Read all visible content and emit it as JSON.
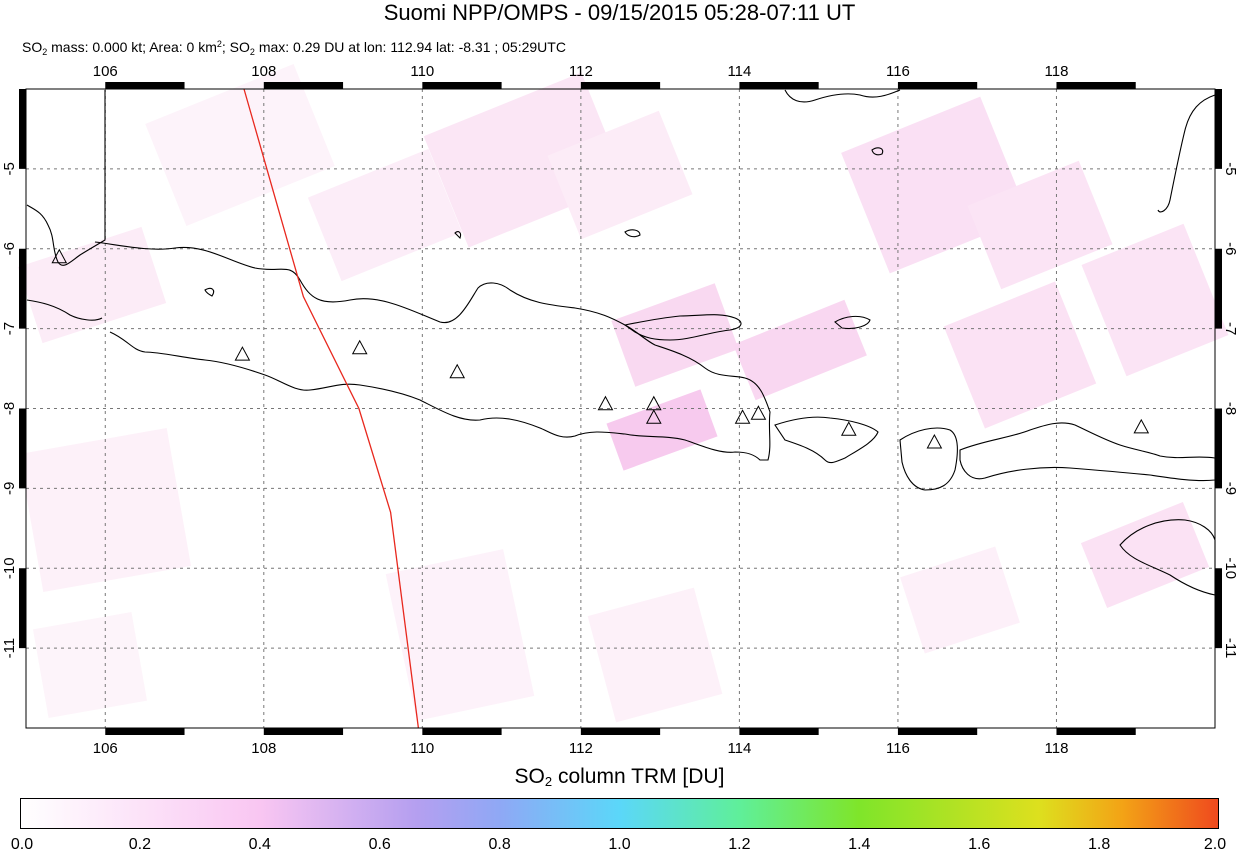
{
  "title": "Suomi NPP/OMPS - 09/15/2015 05:28-07:11 UT",
  "subtitle": {
    "so2_mass_label": "SO",
    "mass_rest": " mass: 0.000 kt; Area: 0 km",
    "area_exp": "2",
    "so2_max_label": "; SO",
    "max_rest": " max: 0.29 DU at lon: 112.94 lat: -8.31 ; 05:29UTC",
    "sub2": "2"
  },
  "map": {
    "lon_range": [
      105,
      120
    ],
    "lat_range": [
      -12,
      -4
    ],
    "lon_ticks": [
      "106",
      "108",
      "110",
      "112",
      "114",
      "116",
      "118"
    ],
    "lat_ticks": [
      "-5",
      "-6",
      "-7",
      "-8",
      "-9",
      "-10",
      "-11"
    ],
    "orbit_track": [
      [
        107.75,
        -4.0
      ],
      [
        108.5,
        -6.6
      ],
      [
        109.2,
        -8.0
      ],
      [
        109.6,
        -9.3
      ],
      [
        109.95,
        -12.0
      ]
    ],
    "volcanoes": [
      [
        105.42,
        -6.1
      ],
      [
        107.73,
        -7.32
      ],
      [
        109.21,
        -7.24
      ],
      [
        110.44,
        -7.54
      ],
      [
        112.31,
        -7.94
      ],
      [
        112.92,
        -7.94
      ],
      [
        112.92,
        -8.11
      ],
      [
        114.04,
        -8.11
      ],
      [
        114.24,
        -8.06
      ],
      [
        115.38,
        -8.26
      ],
      [
        116.46,
        -8.42
      ],
      [
        119.07,
        -8.23
      ]
    ],
    "colors": {
      "coast": "#000000",
      "orbit": "#e8281e",
      "grid": "#777777",
      "so2_low": "#fbe4f4"
    }
  },
  "colorbar": {
    "title_prefix": "SO",
    "title_sub": "2",
    "title_suffix": " column TRM [DU]",
    "ticks": [
      "0.0",
      "0.2",
      "0.4",
      "0.6",
      "0.8",
      "1.0",
      "1.2",
      "1.4",
      "1.6",
      "1.8",
      "2.0"
    ],
    "range": [
      0.0,
      2.0
    ]
  }
}
